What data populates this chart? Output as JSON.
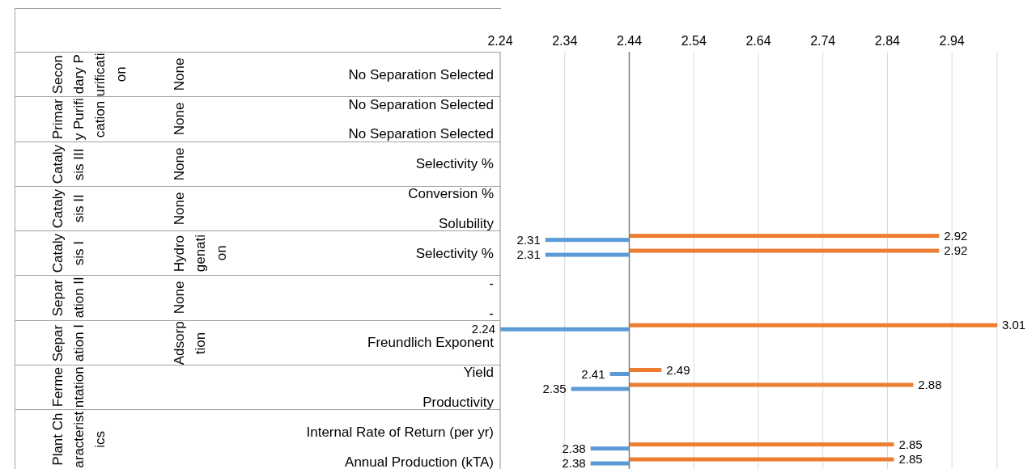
{
  "chart_data": {
    "type": "bar",
    "orientation": "horizontal",
    "categories": [
      null,
      "No Separation Selected",
      null,
      "No Separation Selected",
      null,
      "No Separation Selected",
      null,
      "Selectivity %",
      null,
      "Conversion %",
      null,
      "Solubility",
      null,
      "Selectivity %",
      null,
      "-",
      null,
      "-",
      null,
      "Freundlich Exponent",
      null,
      "Yield",
      null,
      "Productivity",
      null,
      "Internal Rate of Return (per yr)",
      null,
      "Annual Production (kTA)"
    ],
    "series": [
      {
        "color": "#ed7d31",
        "base": [
          null,
          null,
          null,
          null,
          null,
          null,
          null,
          null,
          null,
          null,
          null,
          null,
          2.44,
          2.44,
          null,
          null,
          null,
          null,
          2.44,
          null,
          null,
          2.44,
          2.44,
          null,
          null,
          null,
          2.44,
          2.44
        ],
        "values": [
          null,
          null,
          null,
          null,
          null,
          null,
          null,
          null,
          null,
          null,
          null,
          null,
          0.48,
          0.48,
          null,
          null,
          null,
          null,
          0.57,
          null,
          null,
          0.05,
          0.44,
          null,
          null,
          null,
          0.41,
          0.41
        ],
        "value_labels": [
          null,
          null,
          null,
          null,
          null,
          null,
          null,
          null,
          null,
          null,
          null,
          null,
          "2.92",
          "2.92",
          null,
          null,
          null,
          null,
          "3.01",
          null,
          null,
          "2.49",
          "2.88",
          null,
          null,
          null,
          "2.85",
          "2.85"
        ]
      },
      {
        "color": "#5b9bd5",
        "base": [
          null,
          null,
          null,
          null,
          null,
          null,
          null,
          null,
          null,
          null,
          null,
          null,
          2.44,
          2.44,
          null,
          null,
          null,
          null,
          2.44,
          null,
          null,
          2.44,
          2.44,
          null,
          null,
          null,
          2.44,
          2.44
        ],
        "values": [
          null,
          null,
          null,
          null,
          null,
          null,
          null,
          null,
          null,
          null,
          null,
          null,
          -0.13,
          -0.13,
          null,
          null,
          null,
          null,
          -0.2,
          null,
          null,
          -0.03,
          -0.09,
          null,
          null,
          null,
          -0.06,
          -0.06
        ],
        "value_labels": [
          null,
          null,
          null,
          null,
          null,
          null,
          null,
          null,
          null,
          null,
          null,
          null,
          "2.31",
          "2.31",
          null,
          null,
          null,
          null,
          "2.24",
          null,
          null,
          "2.41",
          "2.35",
          null,
          null,
          null,
          "2.38",
          "2.38"
        ]
      }
    ],
    "xlim": [
      2.24,
      3.01
    ],
    "xticks": [
      2.24,
      2.34,
      2.44,
      2.54,
      2.64,
      2.74,
      2.84,
      2.94
    ],
    "ref_lines": [
      {
        "axis": "x",
        "value": 2.44,
        "color": "#808080"
      }
    ],
    "grid": "x",
    "legend": false,
    "annotations": [
      "Secondary Purification",
      "Primary Purification",
      "Catalysis III",
      "Catalysis II",
      "Catalysis I",
      "Separation II",
      "Separation I",
      "Fermentation",
      "Plant Characteristics",
      "None",
      "None",
      "None",
      "None",
      "Hydrogenation",
      "None",
      "Adsorption"
    ]
  }
}
